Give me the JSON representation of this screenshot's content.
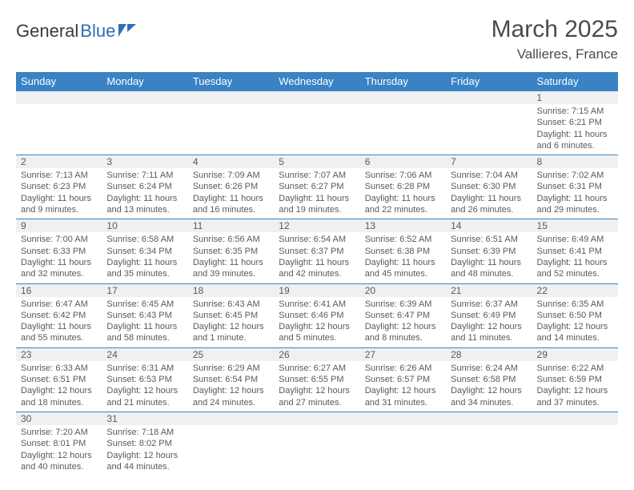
{
  "brand": {
    "part1": "General",
    "part2": "Blue"
  },
  "title": "March 2025",
  "location": "Vallieres, France",
  "weekday_header_bg": "#3a82c4",
  "weekday_header_fg": "#ffffff",
  "daynum_bg": "#f0f0f0",
  "border_color": "#3a82c4",
  "text_color": "#5a5a5a",
  "weekdays": [
    "Sunday",
    "Monday",
    "Tuesday",
    "Wednesday",
    "Thursday",
    "Friday",
    "Saturday"
  ],
  "weeks": [
    [
      null,
      null,
      null,
      null,
      null,
      null,
      {
        "n": "1",
        "sr": "Sunrise: 7:15 AM",
        "ss": "Sunset: 6:21 PM",
        "dl": "Daylight: 11 hours and 6 minutes."
      }
    ],
    [
      {
        "n": "2",
        "sr": "Sunrise: 7:13 AM",
        "ss": "Sunset: 6:23 PM",
        "dl": "Daylight: 11 hours and 9 minutes."
      },
      {
        "n": "3",
        "sr": "Sunrise: 7:11 AM",
        "ss": "Sunset: 6:24 PM",
        "dl": "Daylight: 11 hours and 13 minutes."
      },
      {
        "n": "4",
        "sr": "Sunrise: 7:09 AM",
        "ss": "Sunset: 6:26 PM",
        "dl": "Daylight: 11 hours and 16 minutes."
      },
      {
        "n": "5",
        "sr": "Sunrise: 7:07 AM",
        "ss": "Sunset: 6:27 PM",
        "dl": "Daylight: 11 hours and 19 minutes."
      },
      {
        "n": "6",
        "sr": "Sunrise: 7:06 AM",
        "ss": "Sunset: 6:28 PM",
        "dl": "Daylight: 11 hours and 22 minutes."
      },
      {
        "n": "7",
        "sr": "Sunrise: 7:04 AM",
        "ss": "Sunset: 6:30 PM",
        "dl": "Daylight: 11 hours and 26 minutes."
      },
      {
        "n": "8",
        "sr": "Sunrise: 7:02 AM",
        "ss": "Sunset: 6:31 PM",
        "dl": "Daylight: 11 hours and 29 minutes."
      }
    ],
    [
      {
        "n": "9",
        "sr": "Sunrise: 7:00 AM",
        "ss": "Sunset: 6:33 PM",
        "dl": "Daylight: 11 hours and 32 minutes."
      },
      {
        "n": "10",
        "sr": "Sunrise: 6:58 AM",
        "ss": "Sunset: 6:34 PM",
        "dl": "Daylight: 11 hours and 35 minutes."
      },
      {
        "n": "11",
        "sr": "Sunrise: 6:56 AM",
        "ss": "Sunset: 6:35 PM",
        "dl": "Daylight: 11 hours and 39 minutes."
      },
      {
        "n": "12",
        "sr": "Sunrise: 6:54 AM",
        "ss": "Sunset: 6:37 PM",
        "dl": "Daylight: 11 hours and 42 minutes."
      },
      {
        "n": "13",
        "sr": "Sunrise: 6:52 AM",
        "ss": "Sunset: 6:38 PM",
        "dl": "Daylight: 11 hours and 45 minutes."
      },
      {
        "n": "14",
        "sr": "Sunrise: 6:51 AM",
        "ss": "Sunset: 6:39 PM",
        "dl": "Daylight: 11 hours and 48 minutes."
      },
      {
        "n": "15",
        "sr": "Sunrise: 6:49 AM",
        "ss": "Sunset: 6:41 PM",
        "dl": "Daylight: 11 hours and 52 minutes."
      }
    ],
    [
      {
        "n": "16",
        "sr": "Sunrise: 6:47 AM",
        "ss": "Sunset: 6:42 PM",
        "dl": "Daylight: 11 hours and 55 minutes."
      },
      {
        "n": "17",
        "sr": "Sunrise: 6:45 AM",
        "ss": "Sunset: 6:43 PM",
        "dl": "Daylight: 11 hours and 58 minutes."
      },
      {
        "n": "18",
        "sr": "Sunrise: 6:43 AM",
        "ss": "Sunset: 6:45 PM",
        "dl": "Daylight: 12 hours and 1 minute."
      },
      {
        "n": "19",
        "sr": "Sunrise: 6:41 AM",
        "ss": "Sunset: 6:46 PM",
        "dl": "Daylight: 12 hours and 5 minutes."
      },
      {
        "n": "20",
        "sr": "Sunrise: 6:39 AM",
        "ss": "Sunset: 6:47 PM",
        "dl": "Daylight: 12 hours and 8 minutes."
      },
      {
        "n": "21",
        "sr": "Sunrise: 6:37 AM",
        "ss": "Sunset: 6:49 PM",
        "dl": "Daylight: 12 hours and 11 minutes."
      },
      {
        "n": "22",
        "sr": "Sunrise: 6:35 AM",
        "ss": "Sunset: 6:50 PM",
        "dl": "Daylight: 12 hours and 14 minutes."
      }
    ],
    [
      {
        "n": "23",
        "sr": "Sunrise: 6:33 AM",
        "ss": "Sunset: 6:51 PM",
        "dl": "Daylight: 12 hours and 18 minutes."
      },
      {
        "n": "24",
        "sr": "Sunrise: 6:31 AM",
        "ss": "Sunset: 6:53 PM",
        "dl": "Daylight: 12 hours and 21 minutes."
      },
      {
        "n": "25",
        "sr": "Sunrise: 6:29 AM",
        "ss": "Sunset: 6:54 PM",
        "dl": "Daylight: 12 hours and 24 minutes."
      },
      {
        "n": "26",
        "sr": "Sunrise: 6:27 AM",
        "ss": "Sunset: 6:55 PM",
        "dl": "Daylight: 12 hours and 27 minutes."
      },
      {
        "n": "27",
        "sr": "Sunrise: 6:26 AM",
        "ss": "Sunset: 6:57 PM",
        "dl": "Daylight: 12 hours and 31 minutes."
      },
      {
        "n": "28",
        "sr": "Sunrise: 6:24 AM",
        "ss": "Sunset: 6:58 PM",
        "dl": "Daylight: 12 hours and 34 minutes."
      },
      {
        "n": "29",
        "sr": "Sunrise: 6:22 AM",
        "ss": "Sunset: 6:59 PM",
        "dl": "Daylight: 12 hours and 37 minutes."
      }
    ],
    [
      {
        "n": "30",
        "sr": "Sunrise: 7:20 AM",
        "ss": "Sunset: 8:01 PM",
        "dl": "Daylight: 12 hours and 40 minutes."
      },
      {
        "n": "31",
        "sr": "Sunrise: 7:18 AM",
        "ss": "Sunset: 8:02 PM",
        "dl": "Daylight: 12 hours and 44 minutes."
      },
      null,
      null,
      null,
      null,
      null
    ]
  ]
}
